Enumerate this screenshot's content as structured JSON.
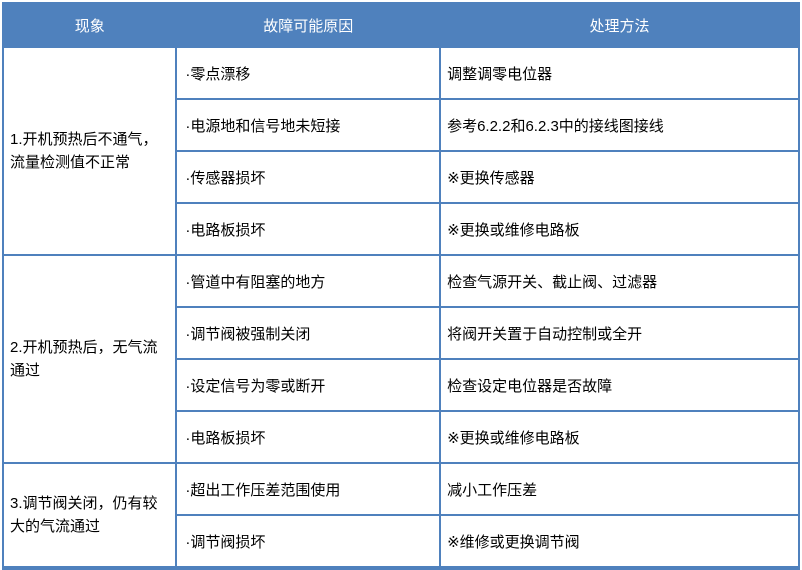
{
  "table": {
    "headers": {
      "phenomenon": "现象",
      "cause": "故障可能原因",
      "method": "处理方法"
    },
    "colors": {
      "header_bg": "#4F81BD",
      "header_text": "#FFFFFF",
      "border": "#4F81BD",
      "body_text": "#000000"
    },
    "sections": [
      {
        "phenomenon": "1.开机预热后不通气， 流量检测值不正常",
        "rows": [
          {
            "cause": "·零点漂移",
            "method": "调整调零电位器"
          },
          {
            "cause": "·电源地和信号地未短接",
            "method": "参考6.2.2和6.2.3中的接线图接线"
          },
          {
            "cause": "·传感器损坏",
            "method": "※更换传感器"
          },
          {
            "cause": "·电路板损坏",
            "method": "※更换或维修电路板"
          }
        ]
      },
      {
        "phenomenon": "2.开机预热后，无气流通过",
        "rows": [
          {
            "cause": "·管道中有阻塞的地方",
            "method": "检查气源开关、截止阀、过滤器"
          },
          {
            "cause": "·调节阀被强制关闭",
            "method": "将阀开关置于自动控制或全开"
          },
          {
            "cause": "·设定信号为零或断开",
            "method": "检查设定电位器是否故障"
          },
          {
            "cause": "·电路板损坏",
            "method": "※更换或维修电路板"
          }
        ]
      },
      {
        "phenomenon": "3.调节阀关闭，仍有较大的气流通过",
        "rows": [
          {
            "cause": "·超出工作压差范围使用",
            "method": "减小工作压差"
          },
          {
            "cause": "·调节阀损坏",
            "method": "※维修或更换调节阀"
          }
        ]
      }
    ]
  }
}
